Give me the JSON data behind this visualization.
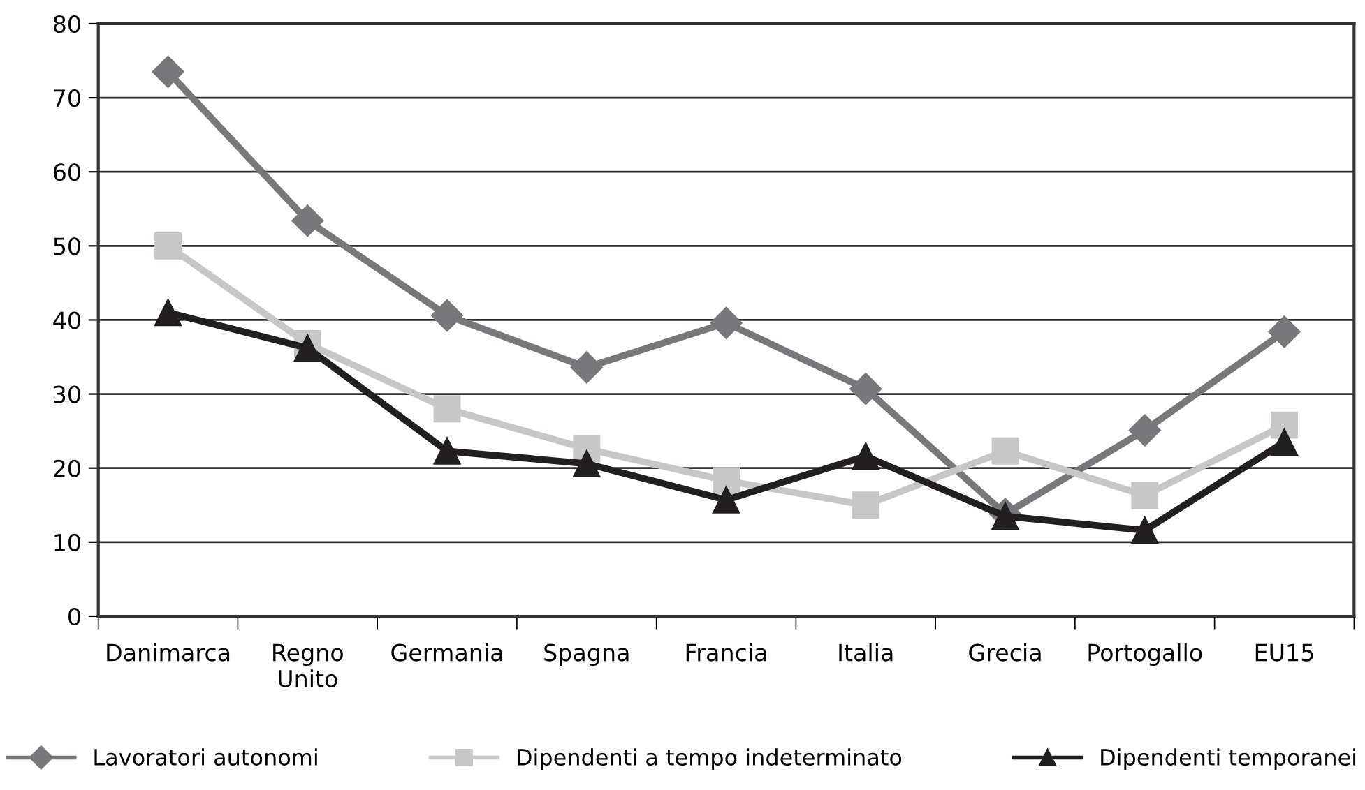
{
  "chart_data": {
    "type": "line",
    "categories": [
      "Danimarca",
      "Regno\nUnito",
      "Germania",
      "Spagna",
      "Francia",
      "Italia",
      "Grecia",
      "Portogallo",
      "EU15"
    ],
    "series": [
      {
        "name": "Lavoratori autonomi",
        "color": "#77787b",
        "marker": "diamond",
        "values": [
          73.5,
          53.4,
          40.6,
          33.6,
          39.6,
          30.7,
          13.8,
          25.1,
          38.4
        ]
      },
      {
        "name": "Dipendenti a tempo indeterminato",
        "color": "#c6c7c9",
        "marker": "square",
        "values": [
          50,
          36.8,
          28,
          22.6,
          18.3,
          15,
          22.3,
          16.3,
          25.8
        ]
      },
      {
        "name": "Dipendenti temporanei",
        "color": "#231f20",
        "marker": "triangle",
        "values": [
          41,
          36.2,
          22.3,
          20.6,
          15.7,
          21.6,
          13.5,
          11.6,
          23.5
        ]
      }
    ],
    "ylim": [
      0,
      80
    ],
    "yticks": [
      0,
      10,
      20,
      30,
      40,
      50,
      60,
      70,
      80
    ],
    "grid": "y",
    "legend": "bottom"
  }
}
